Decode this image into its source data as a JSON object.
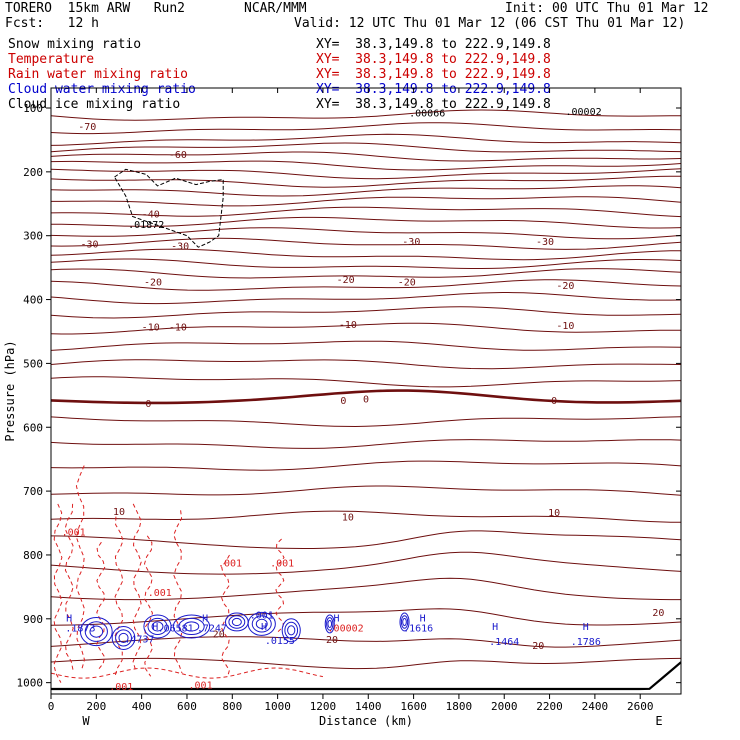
{
  "header": {
    "model": "TORERO  15km ARW   Run2",
    "org": "NCAR/MMM",
    "init": "Init: 00 UTC Thu 01 Mar 12",
    "fcst": "Fcst:   12 h",
    "valid": "Valid: 12 UTC Thu 01 Mar 12 (06 CST Thu 01 Mar 12)"
  },
  "legend": [
    {
      "label": "Snow mixing ratio",
      "color": "#000000",
      "xy": ""
    },
    {
      "label": "Temperature",
      "color": "#cc0000",
      "xy": "XY=  38.3,149.8 to 222.9,149.8"
    },
    {
      "label": "Rain water mixing ratio",
      "color": "#cc0000",
      "xy": "XY=  38.3,149.8 to 222.9,149.8"
    },
    {
      "label": "Cloud water mixing ratio",
      "color": "#0000cc",
      "xy": "XY=  38.3,149.8 to 222.9,149.8"
    },
    {
      "label": "Cloud ice mixing ratio",
      "color": "#000000",
      "xy": "XY=  38.3,149.8 to 222.9,149.8"
    }
  ],
  "snow_xy": "XY=  38.3,149.8 to 222.9,149.8",
  "colors": {
    "temperature": "#6e0f0f",
    "rain": "#dd2222",
    "cloud_water": "#1a1acc",
    "ice": "#000000"
  },
  "chart_data": {
    "type": "contour-cross-section",
    "xlabel": "Distance (km)",
    "ylabel": "Pressure (hPa)",
    "xlim": [
      0,
      2780
    ],
    "ylim": [
      1050,
      100
    ],
    "x_ticks": [
      0,
      200,
      400,
      600,
      800,
      1000,
      1200,
      1400,
      1600,
      1800,
      2000,
      2200,
      2400,
      2600
    ],
    "y_ticks": [
      100,
      200,
      300,
      400,
      500,
      600,
      700,
      800,
      900,
      1000
    ],
    "left_end": "W",
    "right_end": "E",
    "temperature_labels": [
      {
        "text": "-70",
        "x": 160,
        "p": 128
      },
      {
        "text": "-60",
        "x": 560,
        "p": 172
      },
      {
        "text": "-40",
        "x": 440,
        "p": 265
      },
      {
        "text": "-30",
        "x": 170,
        "p": 312
      },
      {
        "text": "-30",
        "x": 570,
        "p": 315
      },
      {
        "text": "-30",
        "x": 1590,
        "p": 308
      },
      {
        "text": "-30",
        "x": 2180,
        "p": 308
      },
      {
        "text": "-20",
        "x": 450,
        "p": 372
      },
      {
        "text": "-20",
        "x": 1300,
        "p": 368
      },
      {
        "text": "-20",
        "x": 1570,
        "p": 372
      },
      {
        "text": "-20",
        "x": 2270,
        "p": 377
      },
      {
        "text": "-10",
        "x": 440,
        "p": 442
      },
      {
        "text": "-10",
        "x": 560,
        "p": 442
      },
      {
        "text": "-10",
        "x": 1310,
        "p": 438
      },
      {
        "text": "-10",
        "x": 2270,
        "p": 440
      },
      {
        "text": "0",
        "x": 430,
        "p": 562
      },
      {
        "text": "0",
        "x": 1290,
        "p": 557
      },
      {
        "text": "0",
        "x": 1390,
        "p": 555
      },
      {
        "text": "0",
        "x": 2220,
        "p": 557
      },
      {
        "text": "10",
        "x": 300,
        "p": 731
      },
      {
        "text": "10",
        "x": 1310,
        "p": 740
      },
      {
        "text": "10",
        "x": 2220,
        "p": 733
      },
      {
        "text": "20",
        "x": 740,
        "p": 923
      },
      {
        "text": "20",
        "x": 1240,
        "p": 932
      },
      {
        "text": "20",
        "x": 2150,
        "p": 941
      },
      {
        "text": "20",
        "x": 2680,
        "p": 889
      }
    ],
    "rain_labels": [
      {
        "text": ".001",
        "x": 100,
        "p": 763
      },
      {
        "text": ".001",
        "x": 790,
        "p": 812
      },
      {
        "text": ".001",
        "x": 1020,
        "p": 812
      },
      {
        "text": ".001",
        "x": 480,
        "p": 858
      },
      {
        "text": ".001",
        "x": 310,
        "p": 1005
      },
      {
        "text": ".001",
        "x": 660,
        "p": 1003
      },
      {
        "text": ".00002",
        "x": 1300,
        "p": 914
      }
    ],
    "cloud_water_labels": [
      {
        "text": ".001",
        "x": 930,
        "p": 893
      },
      {
        "text": ".1616",
        "x": 1620,
        "p": 914
      },
      {
        "text": ".1464",
        "x": 2000,
        "p": 935
      },
      {
        "text": ".1786",
        "x": 2360,
        "p": 935
      },
      {
        "text": ".4737",
        "x": 390,
        "p": 931
      },
      {
        "text": ".7247",
        "x": 710,
        "p": 914
      },
      {
        "text": ".0155",
        "x": 1010,
        "p": 933
      },
      {
        "text": ".06581",
        "x": 550,
        "p": 914
      },
      {
        "text": ".1873",
        "x": 130,
        "p": 914
      }
    ],
    "high_markers": [
      {
        "x": 80,
        "p": 898
      },
      {
        "x": 460,
        "p": 911
      },
      {
        "x": 680,
        "p": 898
      },
      {
        "x": 1260,
        "p": 898
      },
      {
        "x": 1640,
        "p": 898
      },
      {
        "x": 1960,
        "p": 911
      },
      {
        "x": 2360,
        "p": 911
      },
      {
        "x": 940,
        "p": 911
      }
    ],
    "ice_labels": [
      {
        "text": ".01872",
        "x": 420,
        "p": 282
      },
      {
        "text": ".00066",
        "x": 1660,
        "p": 107
      },
      {
        "text": ".00002",
        "x": 2350,
        "p": 105
      }
    ]
  }
}
